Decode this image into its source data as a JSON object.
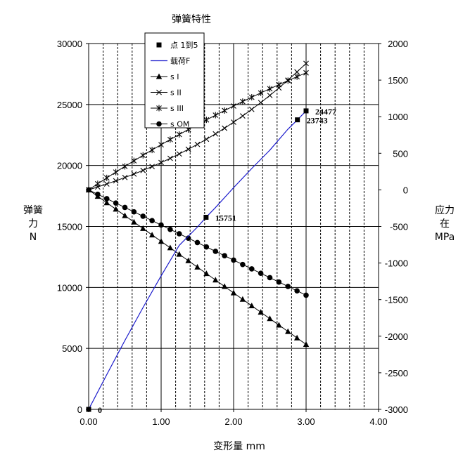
{
  "chart_data": {
    "type": "line",
    "title": "弹簧特性",
    "xlabel": "变形量 mm",
    "ylabel_left": [
      "弹簧",
      "力",
      "N"
    ],
    "ylabel_right": [
      "应力",
      "在",
      "MPa"
    ],
    "xlim": [
      0,
      4
    ],
    "ylim_left": [
      0,
      30000
    ],
    "ylim_right": [
      -3000,
      2000
    ],
    "x_ticks": [
      "0.00",
      "1.00",
      "2.00",
      "3.00",
      "4.00"
    ],
    "y_left_ticks": [
      "0",
      "5000",
      "10000",
      "15000",
      "20000",
      "25000",
      "30000"
    ],
    "y_right_ticks": [
      "-3000",
      "-2500",
      "-2000",
      "-1500",
      "-1000",
      "-500",
      "0",
      "500",
      "1000",
      "1500",
      "2000"
    ],
    "legend_position": "top-center",
    "grid": true,
    "colors": {
      "load_line": "#1a1acc",
      "markers": "#000000"
    },
    "points": {
      "name": "点 1到5",
      "axis": "left",
      "values": [
        {
          "x": 0.0,
          "y": 0,
          "label": "0"
        },
        {
          "x": 1.62,
          "y": 15751,
          "label": "15751"
        },
        {
          "x": 2.88,
          "y": 23743,
          "label": "23743"
        },
        {
          "x": 3.0,
          "y": 24477,
          "label": "24477"
        }
      ]
    },
    "load": {
      "name": "载荷F",
      "axis": "left",
      "x": [
        0,
        0.25,
        0.5,
        0.75,
        1.0,
        1.25,
        1.5,
        1.62,
        1.75,
        2.0,
        2.25,
        2.5,
        2.75,
        2.88,
        3.0
      ],
      "y": [
        0,
        2850,
        5650,
        8350,
        10950,
        13450,
        14950,
        15751,
        16550,
        18180,
        19750,
        21260,
        22980,
        23743,
        24477
      ]
    },
    "stress_series": [
      {
        "name": "s I",
        "marker": "triangle",
        "axis": "right",
        "x": [
          0,
          0.125,
          0.25,
          0.375,
          0.5,
          0.625,
          0.75,
          0.875,
          1.0,
          1.125,
          1.25,
          1.375,
          1.5,
          1.625,
          1.75,
          1.875,
          2.0,
          2.125,
          2.25,
          2.375,
          2.5,
          2.625,
          2.75,
          2.875,
          3.0
        ],
        "y": [
          0,
          -88,
          -176,
          -264,
          -352,
          -440,
          -528,
          -616,
          -704,
          -792,
          -880,
          -968,
          -1056,
          -1144,
          -1232,
          -1320,
          -1408,
          -1496,
          -1584,
          -1672,
          -1760,
          -1848,
          -1936,
          -2024,
          -2112
        ]
      },
      {
        "name": "s II",
        "marker": "x",
        "axis": "right",
        "x": [
          0,
          0.125,
          0.25,
          0.375,
          0.5,
          0.625,
          0.75,
          0.875,
          1.0,
          1.125,
          1.25,
          1.375,
          1.5,
          1.625,
          1.75,
          1.875,
          2.0,
          2.125,
          2.25,
          2.375,
          2.5,
          2.625,
          2.75,
          2.875,
          3.0
        ],
        "y": [
          0,
          40,
          81,
          124,
          169,
          216,
          266,
          318,
          373,
          431,
          491,
          555,
          622,
          692,
          766,
          843,
          925,
          1010,
          1100,
          1193,
          1291,
          1393,
          1500,
          1612,
          1728
        ]
      },
      {
        "name": "s III",
        "marker": "star",
        "axis": "right",
        "x": [
          0,
          0.125,
          0.25,
          0.375,
          0.5,
          0.625,
          0.75,
          0.875,
          1.0,
          1.125,
          1.25,
          1.375,
          1.5,
          1.625,
          1.75,
          1.875,
          2.0,
          2.125,
          2.25,
          2.375,
          2.5,
          2.625,
          2.75,
          2.875,
          3.0
        ],
        "y": [
          0,
          83,
          164,
          243,
          321,
          397,
          472,
          545,
          617,
          688,
          757,
          825,
          892,
          957,
          1021,
          1084,
          1146,
          1207,
          1266,
          1325,
          1382,
          1438,
          1493,
          1547,
          1600
        ]
      },
      {
        "name": "s OM",
        "marker": "circle",
        "axis": "right",
        "x": [
          0,
          0.125,
          0.25,
          0.375,
          0.5,
          0.625,
          0.75,
          0.875,
          1.0,
          1.125,
          1.25,
          1.375,
          1.5,
          1.625,
          1.75,
          1.875,
          2.0,
          2.125,
          2.25,
          2.375,
          2.5,
          2.625,
          2.75,
          2.875,
          3.0
        ],
        "y": [
          0,
          -60,
          -120,
          -180,
          -240,
          -300,
          -360,
          -420,
          -480,
          -540,
          -600,
          -660,
          -720,
          -780,
          -840,
          -900,
          -960,
          -1020,
          -1080,
          -1140,
          -1200,
          -1260,
          -1320,
          -1380,
          -1440
        ]
      }
    ]
  }
}
